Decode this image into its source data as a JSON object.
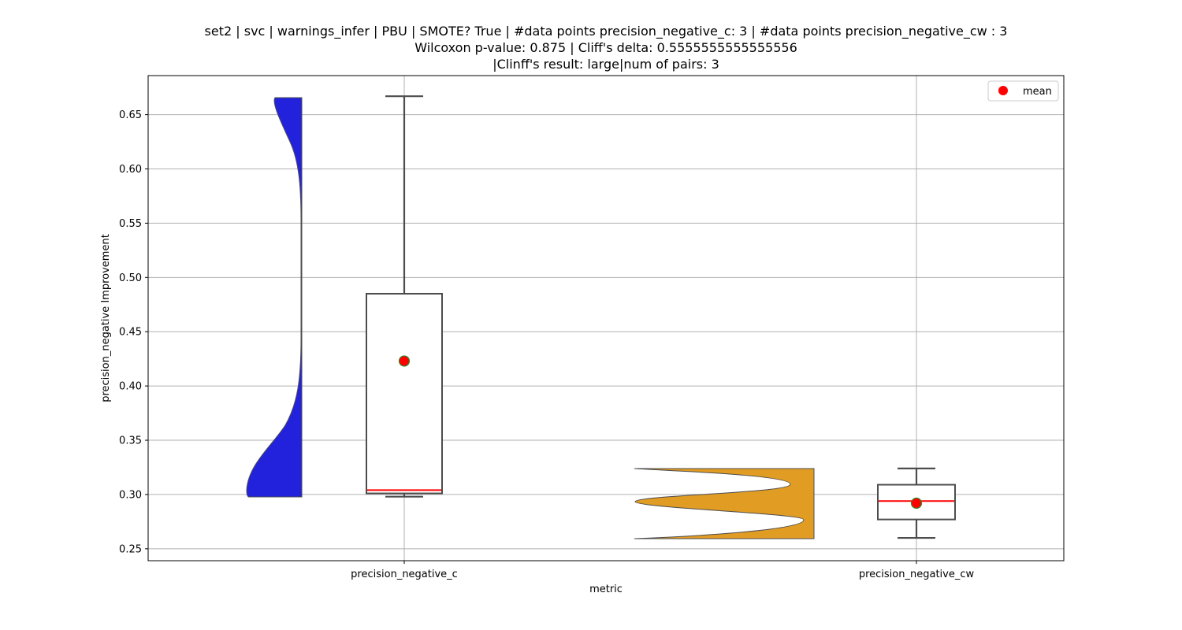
{
  "chart_data": {
    "type": "violin+box",
    "title_lines": [
      "set2 | svc | warnings_infer | PBU | SMOTE? True | #data points precision_negative_c: 3 | #data points precision_negative_cw : 3",
      "Wilcoxon p-value: 0.875 | Cliff's delta: 0.5555555555555556",
      "|Clinff's result: large|num of pairs: 3"
    ],
    "xlabel": "metric",
    "ylabel": "precision_negative Improvement",
    "categories": [
      "precision_negative_c",
      "precision_negative_cw"
    ],
    "ylim": [
      0.239,
      0.686
    ],
    "yticks": [
      0.25,
      0.3,
      0.35,
      0.4,
      0.45,
      0.5,
      0.55,
      0.6,
      0.65
    ],
    "ytick_labels": [
      "0.25",
      "0.30",
      "0.35",
      "0.40",
      "0.45",
      "0.50",
      "0.55",
      "0.60",
      "0.65"
    ],
    "grid": true,
    "legend": {
      "position": "top-right",
      "entries": [
        {
          "label": "mean",
          "marker": "red-circle"
        }
      ]
    },
    "series": [
      {
        "category": "precision_negative_c",
        "violin_color": "#2222dd",
        "violin_side": "left",
        "violin_min": 0.298,
        "violin_max": 0.667,
        "box": {
          "whisker_low": 0.298,
          "q1": 0.301,
          "median": 0.304,
          "q3": 0.485,
          "whisker_high": 0.667
        },
        "mean": 0.423
      },
      {
        "category": "precision_negative_cw",
        "violin_color": "#e19c24",
        "violin_side": "right",
        "violin_min": 0.26,
        "violin_max": 0.324,
        "box": {
          "whisker_low": 0.26,
          "q1": 0.277,
          "median": 0.294,
          "q3": 0.309,
          "whisker_high": 0.324
        },
        "mean": 0.292
      }
    ],
    "colors": {
      "median_line": "#ff0000",
      "mean_marker": "#ff0000",
      "mean_edge": "#2e8b2e",
      "box_edge": "#4d4d4d",
      "grid": "#b0b0b0"
    }
  }
}
